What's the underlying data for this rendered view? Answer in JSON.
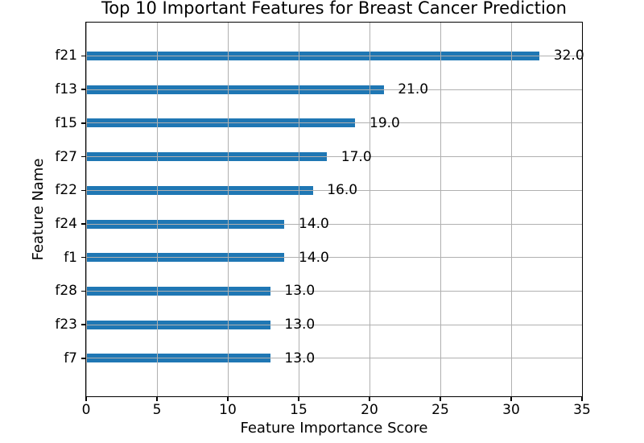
{
  "chart_data": {
    "type": "bar",
    "orientation": "horizontal",
    "title": "Top 10 Important Features for Breast Cancer Prediction",
    "xlabel": "Feature Importance Score",
    "ylabel": "Feature Name",
    "categories": [
      "f21",
      "f13",
      "f15",
      "f27",
      "f22",
      "f24",
      "f1",
      "f28",
      "f23",
      "f7"
    ],
    "values": [
      32,
      21,
      19,
      17,
      16,
      14,
      14,
      13,
      13,
      13
    ],
    "value_labels": [
      "32.0",
      "21.0",
      "19.0",
      "17.0",
      "16.0",
      "14.0",
      "14.0",
      "13.0",
      "13.0",
      "13.0"
    ],
    "xlim": [
      0,
      35
    ],
    "xticks": [
      0,
      5,
      10,
      15,
      20,
      25,
      30,
      35
    ],
    "xtick_labels": [
      "0",
      "5",
      "10",
      "15",
      "20",
      "25",
      "30",
      "35"
    ],
    "grid": true,
    "legend": false,
    "colors": {
      "bar": "#1f77b4",
      "grid": "#b0b0b0",
      "axis": "#000000",
      "text": "#000000",
      "background": "#ffffff"
    }
  }
}
